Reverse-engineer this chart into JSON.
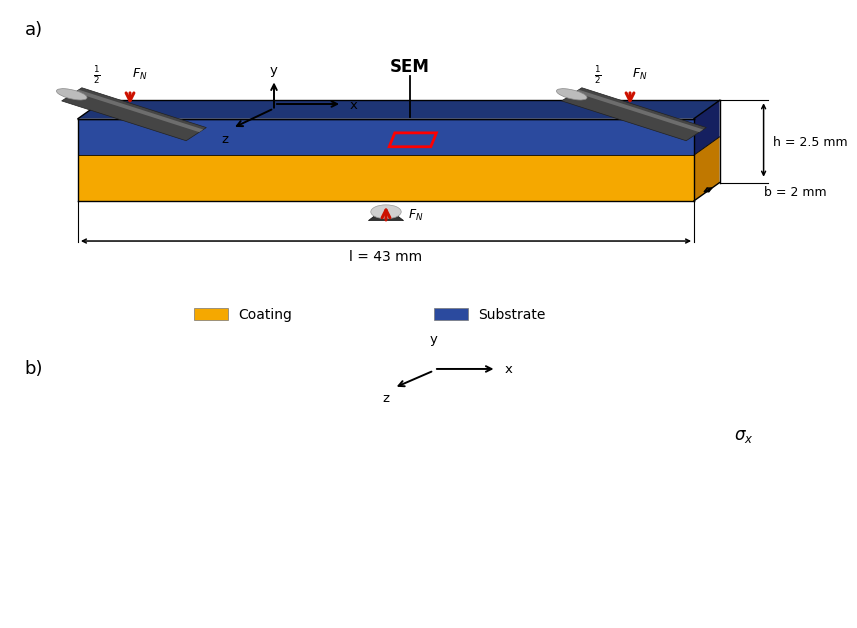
{
  "bg_color": "#ffffff",
  "coating_color": "#F5A800",
  "substrate_color": "#2B4A9E",
  "dark_side_sub": "#152060",
  "dark_top_sub": "#1e3575",
  "dark_coat": "#c07800",
  "red_arrow_color": "#CC1100",
  "black_color": "#000000",
  "sem_label": "SEM",
  "h_label": "h = 2.5 mm",
  "b_label": "b = 2 mm",
  "l_label": "l = 43 mm",
  "coating_legend": "Coating",
  "substrate_legend": "Substrate",
  "label_a": "a)",
  "label_b": "b)"
}
